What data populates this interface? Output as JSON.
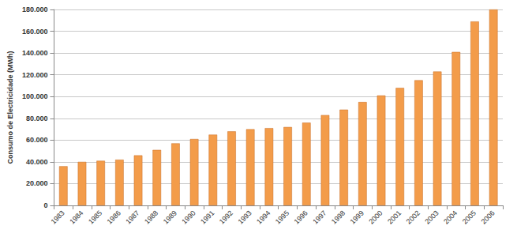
{
  "chart_data": {
    "type": "bar",
    "y_label": "Consumo de Electricidade (MWh)",
    "categories": [
      "1983",
      "1984",
      "1985",
      "1986",
      "1987",
      "1988",
      "1989",
      "1990",
      "1991",
      "1992",
      "1993",
      "1994",
      "1995",
      "1996",
      "1997",
      "1998",
      "1999",
      "2000",
      "2001",
      "2002",
      "2003",
      "2004",
      "2005",
      "2006"
    ],
    "values": [
      36000,
      40000,
      41000,
      42000,
      46000,
      51000,
      57000,
      61000,
      65000,
      68000,
      70000,
      71000,
      72000,
      76000,
      83000,
      88000,
      95000,
      101000,
      108000,
      115000,
      123000,
      141000,
      169000,
      180000
    ],
    "color": "#f39c4a",
    "ylim": [
      0,
      180000
    ],
    "yticks": [
      0,
      {
        "value": 20000,
        "label": "20.000"
      },
      {
        "value": 40000,
        "label": "40.000"
      },
      {
        "value": 60000,
        "label": "60.000"
      },
      {
        "value": 80000,
        "label": "80.000"
      },
      {
        "value": 100000,
        "label": "100.000"
      },
      {
        "value": 120000,
        "label": "120.000"
      },
      {
        "value": 140000,
        "label": "140.000"
      },
      {
        "value": 160000,
        "label": "160.000"
      },
      {
        "value": 180000,
        "label": "180.000"
      }
    ],
    "grid": true
  }
}
